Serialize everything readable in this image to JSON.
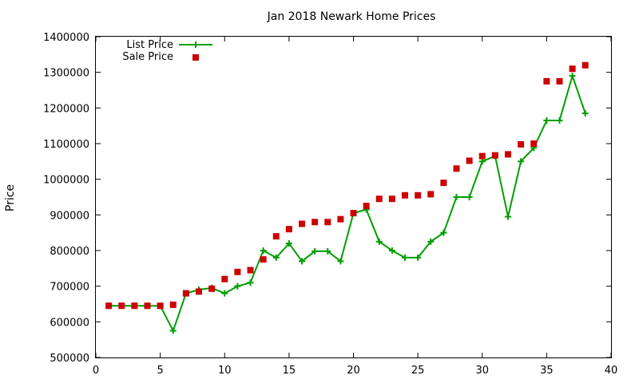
{
  "chart_data": {
    "type": "line",
    "title": "Jan 2018 Newark Home Prices",
    "xlabel": "",
    "ylabel": "Price",
    "xlim": [
      0,
      40
    ],
    "ylim": [
      500000,
      1400000
    ],
    "x_ticks": [
      0,
      5,
      10,
      15,
      20,
      25,
      30,
      35,
      40
    ],
    "y_ticks": [
      500000,
      600000,
      700000,
      800000,
      900000,
      1000000,
      1100000,
      1200000,
      1300000,
      1400000
    ],
    "x_tick_labels": [
      "0",
      "5",
      "10",
      "15",
      "20",
      "25",
      "30",
      "35",
      "40"
    ],
    "y_tick_labels": [
      "500000",
      "600000",
      "700000",
      "800000",
      "900000",
      "1000000",
      "1100000",
      "1200000",
      "1300000",
      "1400000"
    ],
    "grid": false,
    "legend_position": "top-left",
    "series": [
      {
        "name": "List Price",
        "style": "line-plus",
        "color": "#009e00",
        "x": [
          1,
          2,
          3,
          4,
          5,
          6,
          7,
          8,
          9,
          10,
          11,
          12,
          13,
          14,
          15,
          16,
          17,
          18,
          19,
          20,
          21,
          22,
          23,
          24,
          25,
          26,
          27,
          28,
          29,
          30,
          31,
          32,
          33,
          34,
          35,
          36,
          37,
          38
        ],
        "values": [
          645000,
          645000,
          645000,
          645000,
          645000,
          575000,
          680000,
          690000,
          695000,
          680000,
          700000,
          710000,
          800000,
          780000,
          820000,
          770000,
          798000,
          798000,
          770000,
          905000,
          915000,
          825000,
          800000,
          780000,
          780000,
          825000,
          850000,
          950000,
          950000,
          1050000,
          1065000,
          895000,
          1050000,
          1088000,
          1165000,
          1165000,
          1290000,
          1185000
        ]
      },
      {
        "name": "Sale Price",
        "style": "square",
        "color": "#cc0000",
        "x": [
          1,
          2,
          3,
          4,
          5,
          6,
          7,
          8,
          9,
          10,
          11,
          12,
          13,
          14,
          15,
          16,
          17,
          18,
          19,
          20,
          21,
          22,
          23,
          24,
          25,
          26,
          27,
          28,
          29,
          30,
          31,
          32,
          33,
          34,
          35,
          36,
          37,
          38
        ],
        "values": [
          645000,
          645000,
          645000,
          645000,
          645000,
          648000,
          680000,
          685000,
          693000,
          720000,
          740000,
          745000,
          775000,
          840000,
          860000,
          875000,
          880000,
          880000,
          888000,
          905000,
          925000,
          945000,
          945000,
          955000,
          955000,
          958000,
          990000,
          1030000,
          1052000,
          1065000,
          1067000,
          1070000,
          1098000,
          1100000,
          1275000,
          1275000,
          1310000,
          1320000
        ]
      }
    ]
  }
}
